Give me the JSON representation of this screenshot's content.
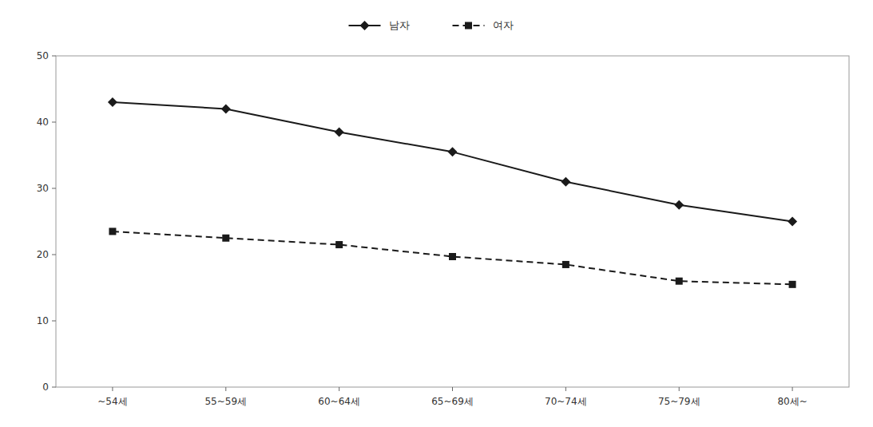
{
  "chart_data": {
    "type": "line",
    "categories": [
      "~54세",
      "55~59세",
      "60~64세",
      "65~69세",
      "70~74세",
      "75~79세",
      "80세~"
    ],
    "series": [
      {
        "name": "남자",
        "color": "#1a1a1a",
        "marker": "diamond",
        "line_style": "solid",
        "values": [
          43.0,
          42.0,
          38.5,
          35.5,
          31.0,
          27.5,
          25.0
        ]
      },
      {
        "name": "여자",
        "color": "#1a1a1a",
        "marker": "square",
        "line_style": "dashed",
        "values": [
          23.5,
          22.5,
          21.5,
          19.7,
          18.5,
          16.0,
          15.5
        ]
      }
    ],
    "ylim": [
      0,
      50
    ],
    "yticks": [
      0,
      10,
      20,
      30,
      40,
      50
    ],
    "grid": false,
    "legend": "top"
  }
}
